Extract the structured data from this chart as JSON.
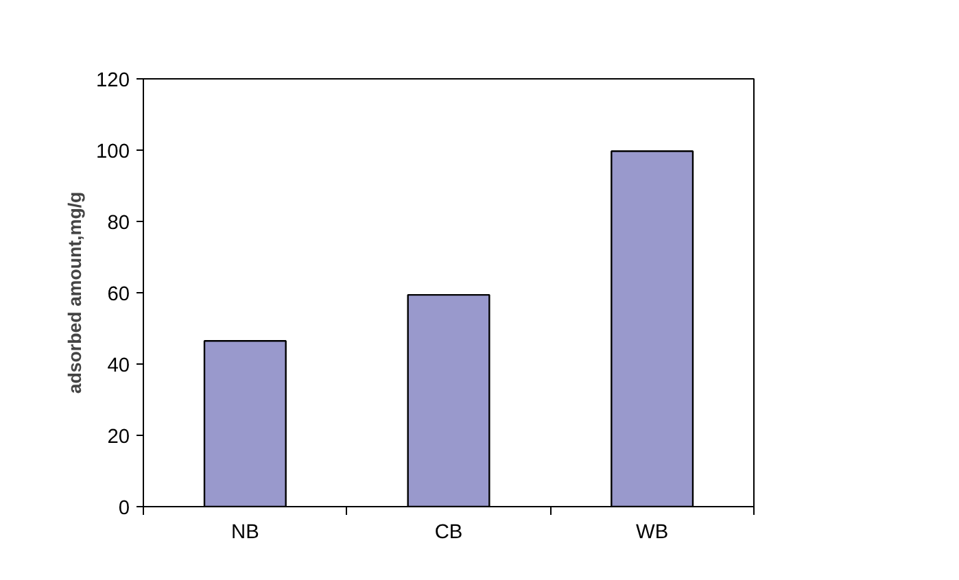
{
  "chart_data": {
    "type": "bar",
    "ylabel": "adsorbed amount,mg/g",
    "categories": [
      "NB",
      "CB",
      "WB"
    ],
    "values": [
      46.5,
      59.4,
      99.7
    ],
    "color": "#9999cc",
    "ylim": [
      0,
      120
    ],
    "yticks": [
      0,
      20,
      40,
      60,
      80,
      100,
      120
    ],
    "grid": false
  }
}
